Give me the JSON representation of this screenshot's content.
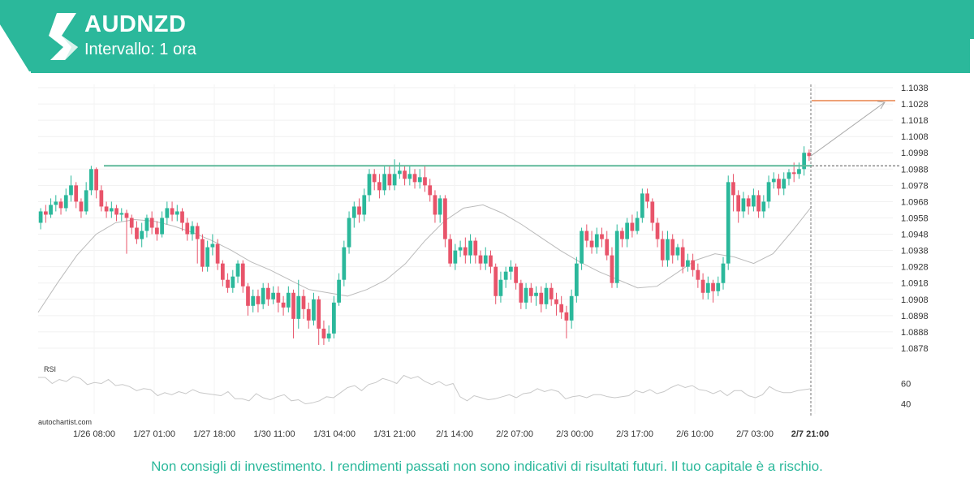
{
  "header": {
    "symbol": "AUDNZD",
    "interval": "Intervallo: 1 ora",
    "logo_icon": "autochartist-logo-icon",
    "color": "#2bb89b"
  },
  "chart_data": {
    "type": "candlestick",
    "symbol": "AUDNZD",
    "price_axis": {
      "min": 1.087,
      "max": 1.104,
      "ticks": [
        "1.1038",
        "1.1028",
        "1.1018",
        "1.1008",
        "1.0998",
        "1.0988",
        "1.0978",
        "1.0968",
        "1.0958",
        "1.0948",
        "1.0938",
        "1.0928",
        "1.0918",
        "1.0908",
        "1.0898",
        "1.0888",
        "1.0878"
      ]
    },
    "x_ticks": [
      "1/26 08:00",
      "1/27 01:00",
      "1/27 18:00",
      "1/30 11:00",
      "1/31 04:00",
      "1/31 21:00",
      "2/1 14:00",
      "2/2 07:00",
      "2/3 00:00",
      "2/3 17:00",
      "2/6 10:00",
      "2/7 03:00",
      "2/7 21:00"
    ],
    "resistance_level": 1.099,
    "target_level": 1.103,
    "moving_average": [
      1.09,
      1.0918,
      1.0935,
      1.0948,
      1.0955,
      1.0957,
      1.0956,
      1.0953,
      1.0949,
      1.0944,
      1.0938,
      1.0931,
      1.0926,
      1.092,
      1.0914,
      1.0912,
      1.091,
      1.0914,
      1.092,
      1.093,
      1.0944,
      1.0956,
      1.0964,
      1.0966,
      1.0961,
      1.0954,
      1.0946,
      1.0938,
      1.0931,
      1.0925,
      1.092,
      1.0915,
      1.0916,
      1.0924,
      1.0932,
      1.0936,
      1.0934,
      1.093,
      1.0936,
      1.095,
      1.0965
    ],
    "candles": [
      [
        1.0955,
        1.0962,
        1.0951,
        1.0964
      ],
      [
        1.0962,
        1.096,
        1.0955,
        1.0966
      ],
      [
        1.096,
        1.0966,
        1.0958,
        1.097
      ],
      [
        1.0966,
        1.0968,
        1.0962,
        1.0972
      ],
      [
        1.0968,
        1.0964,
        1.096,
        1.097
      ],
      [
        1.0964,
        1.0972,
        1.0962,
        1.0976
      ],
      [
        1.0972,
        1.0978,
        1.0968,
        1.0984
      ],
      [
        1.0978,
        1.0968,
        1.0964,
        1.098
      ],
      [
        1.0968,
        1.0962,
        1.0958,
        1.097
      ],
      [
        1.0962,
        1.0975,
        1.096,
        1.098
      ],
      [
        1.0975,
        1.0988,
        1.0972,
        1.099
      ],
      [
        1.0988,
        1.0975,
        1.097,
        1.0989
      ],
      [
        1.0975,
        1.0965,
        1.0962,
        1.0978
      ],
      [
        1.0965,
        1.0962,
        1.0958,
        1.0968
      ],
      [
        1.0962,
        1.0964,
        1.0958,
        1.0968
      ],
      [
        1.0964,
        1.096,
        1.0956,
        1.0966
      ],
      [
        1.096,
        1.0961,
        1.0956,
        1.0964
      ],
      [
        1.0961,
        1.0958,
        1.0936,
        1.0963
      ],
      [
        1.0958,
        1.0952,
        1.0948,
        1.096
      ],
      [
        1.0952,
        1.0945,
        1.0942,
        1.0956
      ],
      [
        1.0945,
        1.095,
        1.094,
        1.0955
      ],
      [
        1.095,
        1.0958,
        1.0946,
        1.096
      ],
      [
        1.0958,
        1.0952,
        1.0948,
        1.0962
      ],
      [
        1.0952,
        1.0948,
        1.0944,
        1.0956
      ],
      [
        1.0948,
        1.0958,
        1.0946,
        1.0962
      ],
      [
        1.0958,
        1.0964,
        1.0954,
        1.0968
      ],
      [
        1.0964,
        1.096,
        1.0956,
        1.0968
      ],
      [
        1.096,
        1.0962,
        1.0956,
        1.0966
      ],
      [
        1.0962,
        1.0955,
        1.095,
        1.0964
      ],
      [
        1.0955,
        1.0948,
        1.0944,
        1.0958
      ],
      [
        1.0948,
        1.0953,
        1.0944,
        1.0956
      ],
      [
        1.0953,
        1.0945,
        1.093,
        1.0955
      ],
      [
        1.0945,
        1.0928,
        1.0925,
        1.0948
      ],
      [
        1.0928,
        1.094,
        1.0925,
        1.0944
      ],
      [
        1.094,
        1.0942,
        1.0935,
        1.0948
      ],
      [
        1.0942,
        1.093,
        1.0926,
        1.0945
      ],
      [
        1.093,
        1.092,
        1.0916,
        1.0932
      ],
      [
        1.092,
        1.0915,
        1.0912,
        1.0924
      ],
      [
        1.0915,
        1.0922,
        1.0912,
        1.0926
      ],
      [
        1.0922,
        1.093,
        1.0918,
        1.0932
      ],
      [
        1.093,
        1.0916,
        1.0912,
        1.0932
      ],
      [
        1.0916,
        1.0904,
        1.0898,
        1.0918
      ],
      [
        1.0904,
        1.091,
        1.09,
        1.0914
      ],
      [
        1.091,
        1.0905,
        1.09,
        1.0914
      ],
      [
        1.0905,
        1.0915,
        1.0902,
        1.0918
      ],
      [
        1.0915,
        1.0908,
        1.0904,
        1.0918
      ],
      [
        1.0908,
        1.0912,
        1.0905,
        1.0916
      ],
      [
        1.0912,
        1.0906,
        1.09,
        1.0916
      ],
      [
        1.0906,
        1.0903,
        1.0898,
        1.091
      ],
      [
        1.0903,
        1.0912,
        1.09,
        1.0916
      ],
      [
        1.0912,
        1.0896,
        1.0884,
        1.0914
      ],
      [
        1.0896,
        1.091,
        1.089,
        1.092
      ],
      [
        1.091,
        1.0902,
        1.0896,
        1.0914
      ],
      [
        1.0902,
        1.0895,
        1.089,
        1.0906
      ],
      [
        1.0895,
        1.0908,
        1.0892,
        1.0912
      ],
      [
        1.0908,
        1.089,
        1.088,
        1.091
      ],
      [
        1.089,
        1.0884,
        1.088,
        1.0895
      ],
      [
        1.0884,
        1.0887,
        1.0882,
        1.0892
      ],
      [
        1.0887,
        1.0906,
        1.0884,
        1.091
      ],
      [
        1.0906,
        1.092,
        1.0904,
        1.0924
      ],
      [
        1.092,
        1.094,
        1.0916,
        1.0944
      ],
      [
        1.094,
        1.0958,
        1.0936,
        1.0962
      ],
      [
        1.0958,
        1.0965,
        1.0952,
        1.0968
      ],
      [
        1.0965,
        1.096,
        1.0955,
        1.097
      ],
      [
        1.096,
        1.0972,
        1.0956,
        1.0976
      ],
      [
        1.0972,
        1.0985,
        1.0968,
        1.0988
      ],
      [
        1.0985,
        1.098,
        1.0975,
        1.0988
      ],
      [
        1.098,
        1.0975,
        1.097,
        1.0985
      ],
      [
        1.0975,
        1.0985,
        1.0972,
        1.099
      ],
      [
        1.0985,
        1.0978,
        1.0975,
        1.099
      ],
      [
        1.0978,
        1.0985,
        1.0975,
        1.0994
      ],
      [
        1.0985,
        1.0987,
        1.0982,
        1.0992
      ],
      [
        1.0987,
        1.0982,
        1.0978,
        1.099
      ],
      [
        1.0982,
        1.0985,
        1.0978,
        1.099
      ],
      [
        1.0985,
        1.098,
        1.0976,
        1.0988
      ],
      [
        1.098,
        1.0983,
        1.0976,
        1.0988
      ],
      [
        1.0983,
        1.0978,
        1.0974,
        1.099
      ],
      [
        1.0978,
        1.0972,
        1.0968,
        1.0982
      ],
      [
        1.0972,
        1.096,
        1.0955,
        1.0975
      ],
      [
        1.096,
        1.097,
        1.0955,
        1.0972
      ],
      [
        1.097,
        1.0945,
        1.094,
        1.0972
      ],
      [
        1.0945,
        1.093,
        1.0928,
        1.0948
      ],
      [
        1.093,
        1.0938,
        1.0926,
        1.0942
      ],
      [
        1.0938,
        1.094,
        1.0934,
        1.0944
      ],
      [
        1.094,
        1.0935,
        1.093,
        1.0946
      ],
      [
        1.0935,
        1.0944,
        1.093,
        1.0948
      ],
      [
        1.0944,
        1.0935,
        1.093,
        1.0946
      ],
      [
        1.0935,
        1.093,
        1.0926,
        1.0938
      ],
      [
        1.093,
        1.0935,
        1.0926,
        1.094
      ],
      [
        1.0935,
        1.0928,
        1.0924,
        1.0938
      ],
      [
        1.0928,
        1.091,
        1.0905,
        1.093
      ],
      [
        1.091,
        1.092,
        1.0906,
        1.0925
      ],
      [
        1.092,
        1.0925,
        1.0915,
        1.0928
      ],
      [
        1.0925,
        1.0928,
        1.092,
        1.0932
      ],
      [
        1.0928,
        1.0918,
        1.0914,
        1.093
      ],
      [
        1.0918,
        1.0906,
        1.0902,
        1.092
      ],
      [
        1.0906,
        1.0915,
        1.0902,
        1.0918
      ],
      [
        1.0915,
        1.091,
        1.0906,
        1.0918
      ],
      [
        1.091,
        1.0912,
        1.0904,
        1.0916
      ],
      [
        1.0912,
        1.0905,
        1.09,
        1.0916
      ],
      [
        1.0905,
        1.0915,
        1.0902,
        1.0918
      ],
      [
        1.0915,
        1.0908,
        1.0904,
        1.0918
      ],
      [
        1.0908,
        1.0905,
        1.0898,
        1.0912
      ],
      [
        1.0905,
        1.09,
        1.0896,
        1.091
      ],
      [
        1.09,
        1.0895,
        1.0884,
        1.0904
      ],
      [
        1.0895,
        1.091,
        1.089,
        1.0914
      ],
      [
        1.091,
        1.093,
        1.0906,
        1.0934
      ],
      [
        1.093,
        1.095,
        1.0926,
        1.0952
      ],
      [
        1.095,
        1.0944,
        1.094,
        1.0954
      ],
      [
        1.0944,
        1.094,
        1.0936,
        1.095
      ],
      [
        1.094,
        1.0948,
        1.0936,
        1.0952
      ],
      [
        1.0948,
        1.0945,
        1.094,
        1.0952
      ],
      [
        1.0945,
        1.0935,
        1.0932,
        1.095
      ],
      [
        1.0935,
        1.0918,
        1.0915,
        1.094
      ],
      [
        1.0918,
        1.095,
        1.0915,
        1.0954
      ],
      [
        1.095,
        1.0945,
        1.094,
        1.0952
      ],
      [
        1.0945,
        1.0955,
        1.094,
        1.0958
      ],
      [
        1.0955,
        1.095,
        1.0946,
        1.096
      ],
      [
        1.095,
        1.0958,
        1.0948,
        1.0962
      ],
      [
        1.0958,
        1.0973,
        1.0955,
        1.0976
      ],
      [
        1.0973,
        1.0968,
        1.0964,
        1.0976
      ],
      [
        1.0968,
        1.0955,
        1.095,
        1.097
      ],
      [
        1.0955,
        1.0945,
        1.094,
        1.0958
      ],
      [
        1.0945,
        1.0932,
        1.0928,
        1.095
      ],
      [
        1.0932,
        1.0945,
        1.0928,
        1.095
      ],
      [
        1.0945,
        1.0935,
        1.093,
        1.0948
      ],
      [
        1.0935,
        1.094,
        1.0932,
        1.0942
      ],
      [
        1.094,
        1.0928,
        1.0924,
        1.0945
      ],
      [
        1.0928,
        1.0932,
        1.0925,
        1.0936
      ],
      [
        1.0932,
        1.0926,
        1.0922,
        1.0936
      ],
      [
        1.0926,
        1.092,
        1.0915,
        1.093
      ],
      [
        1.092,
        1.0912,
        1.0908,
        1.0924
      ],
      [
        1.0912,
        1.0918,
        1.0908,
        1.0922
      ],
      [
        1.0918,
        1.0913,
        1.0906,
        1.092
      ],
      [
        1.0913,
        1.0918,
        1.091,
        1.0922
      ],
      [
        1.0918,
        1.093,
        1.0914,
        1.0934
      ],
      [
        1.093,
        1.098,
        1.0926,
        1.0984
      ],
      [
        1.098,
        1.0972,
        1.0962,
        1.0985
      ],
      [
        1.0972,
        1.0962,
        1.0955,
        1.0975
      ],
      [
        1.0962,
        1.097,
        1.0958,
        1.0974
      ],
      [
        1.097,
        1.0965,
        1.096,
        1.0972
      ],
      [
        1.0965,
        1.0972,
        1.0962,
        1.0976
      ],
      [
        1.0972,
        1.0962,
        1.0958,
        1.0975
      ],
      [
        1.0962,
        1.0968,
        1.0958,
        1.0972
      ],
      [
        1.0968,
        1.098,
        1.0964,
        1.0984
      ],
      [
        1.098,
        1.0982,
        1.0976,
        1.0986
      ],
      [
        1.0982,
        1.0976,
        1.0972,
        1.0985
      ],
      [
        1.0976,
        1.0982,
        1.0972,
        1.0986
      ],
      [
        1.0982,
        1.0986,
        1.0978,
        1.0988
      ],
      [
        1.0986,
        1.0985,
        1.098,
        1.0992
      ],
      [
        1.0985,
        1.0988,
        1.0982,
        1.0992
      ],
      [
        1.0988,
        1.0998,
        1.0984,
        1.1002
      ],
      [
        1.0998,
        1.0996,
        1.0993,
        1.1
      ]
    ]
  },
  "rsi": {
    "label": "RSI",
    "ticks": [
      "60",
      "40"
    ],
    "values": [
      66,
      66,
      60,
      64,
      62,
      67,
      65,
      59,
      61,
      60,
      64,
      58,
      59,
      57,
      53,
      55,
      54,
      48,
      51,
      49,
      52,
      50,
      54,
      51,
      50,
      49,
      48,
      52,
      45,
      45,
      43,
      50,
      46,
      44,
      47,
      49,
      43,
      44,
      40,
      41,
      43,
      47,
      46,
      51,
      56,
      58,
      53,
      59,
      61,
      65,
      63,
      60,
      68,
      65,
      67,
      62,
      59,
      62,
      58,
      60,
      47,
      43,
      48,
      46,
      44,
      45,
      47,
      49,
      46,
      50,
      51,
      55,
      52,
      54,
      52,
      45,
      47,
      48,
      46,
      49,
      49,
      47,
      46,
      47,
      48,
      53,
      51,
      54,
      50,
      52,
      56,
      59,
      56,
      58,
      54,
      53,
      50,
      53,
      48,
      53,
      53,
      48,
      46,
      49,
      57,
      53,
      51,
      51,
      53,
      54,
      55
    ]
  },
  "branding": "autochartist.com",
  "disclaimer": "Non consigli di investimento. I rendimenti passati non sono indicativi di risultati futuri. Il tuo capitale è a rischio.",
  "colors": {
    "brand": "#2bb89b",
    "bull": "#2bb89b",
    "bear": "#e8546a",
    "resistance": "#5fb99a",
    "target": "#e9824a",
    "ma": "#bbbbbb",
    "rsi": "#c8c8c8"
  }
}
